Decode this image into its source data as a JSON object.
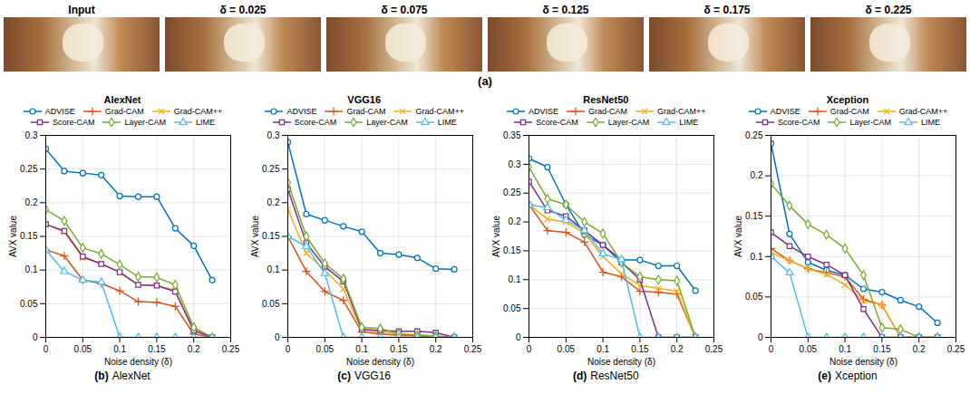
{
  "panel_a": {
    "label": "(a)",
    "images": [
      "Input",
      "δ = 0.025",
      "δ = 0.075",
      "δ = 0.125",
      "δ = 0.175",
      "δ = 0.225"
    ]
  },
  "chart_data": [
    {
      "type": "line",
      "title": "AlexNet",
      "panel_label": "(b)",
      "caption": "AlexNet",
      "xlabel": "Noise density (δ)",
      "ylabel": "AVX value",
      "x": [
        0,
        0.025,
        0.05,
        0.075,
        0.1,
        0.125,
        0.15,
        0.175,
        0.2,
        0.225
      ],
      "xlim": [
        0,
        0.25
      ],
      "xticks": [
        0,
        0.05,
        0.1,
        0.15,
        0.2,
        0.25
      ],
      "ylim": [
        0,
        0.3
      ],
      "yticks": [
        0,
        0.05,
        0.1,
        0.15,
        0.2,
        0.25,
        0.3
      ],
      "grid": true,
      "legend": "top",
      "series": [
        {
          "name": "ADVISE",
          "color": "#0072bd",
          "marker": "circle",
          "values": [
            0.28,
            0.247,
            0.244,
            0.241,
            0.21,
            0.209,
            0.209,
            0.162,
            0.136,
            0.085
          ]
        },
        {
          "name": "Grad-CAM",
          "color": "#d95319",
          "marker": "plus",
          "values": [
            0.13,
            0.121,
            0.085,
            0.08,
            0.069,
            0.053,
            0.052,
            0.046,
            0.005,
            0
          ]
        },
        {
          "name": "Grad-CAM++",
          "color": "#edb120",
          "marker": "x",
          "values": [
            0.168,
            0.157,
            0.118,
            0.11,
            0.096,
            0.078,
            0.077,
            0.07,
            0.012,
            0
          ]
        },
        {
          "name": "Score-CAM",
          "color": "#7e2f8e",
          "marker": "square",
          "values": [
            0.168,
            0.158,
            0.12,
            0.109,
            0.097,
            0.078,
            0.077,
            0.068,
            0.01,
            0
          ]
        },
        {
          "name": "Layer-CAM",
          "color": "#77ac30",
          "marker": "diamond",
          "values": [
            0.19,
            0.173,
            0.133,
            0.124,
            0.108,
            0.09,
            0.089,
            0.078,
            0.015,
            0
          ]
        },
        {
          "name": "LIME",
          "color": "#4dbeee",
          "marker": "triangle",
          "values": [
            0.13,
            0.098,
            0.085,
            0.082,
            0,
            0,
            0,
            0,
            0,
            0
          ]
        }
      ]
    },
    {
      "type": "line",
      "title": "VGG16",
      "panel_label": "(c)",
      "caption": "VGG16",
      "xlabel": "Noise density (δ)",
      "ylabel": "AVX value",
      "x": [
        0,
        0.025,
        0.05,
        0.075,
        0.1,
        0.125,
        0.15,
        0.175,
        0.2,
        0.225
      ],
      "xlim": [
        0,
        0.25
      ],
      "xticks": [
        0,
        0.05,
        0.1,
        0.15,
        0.2,
        0.25
      ],
      "ylim": [
        0,
        0.3
      ],
      "yticks": [
        0,
        0.05,
        0.1,
        0.15,
        0.2,
        0.25,
        0.3
      ],
      "grid": true,
      "legend": "top",
      "series": [
        {
          "name": "ADVISE",
          "color": "#0072bd",
          "marker": "circle",
          "values": [
            0.29,
            0.183,
            0.174,
            0.165,
            0.157,
            0.125,
            0.123,
            0.118,
            0.102,
            0.101
          ]
        },
        {
          "name": "Grad-CAM",
          "color": "#d95319",
          "marker": "plus",
          "values": [
            0.15,
            0.098,
            0.068,
            0.055,
            0.008,
            0.005,
            0.003,
            0.002,
            0.001,
            0
          ]
        },
        {
          "name": "Grad-CAM++",
          "color": "#edb120",
          "marker": "x",
          "values": [
            0.19,
            0.125,
            0.1,
            0.072,
            0.01,
            0.008,
            0.005,
            0.004,
            0.002,
            0
          ]
        },
        {
          "name": "Score-CAM",
          "color": "#7e2f8e",
          "marker": "square",
          "values": [
            0.22,
            0.14,
            0.105,
            0.083,
            0.012,
            0.01,
            0.009,
            0.009,
            0.007,
            0
          ]
        },
        {
          "name": "Layer-CAM",
          "color": "#77ac30",
          "marker": "diamond",
          "values": [
            0.23,
            0.15,
            0.11,
            0.087,
            0.015,
            0.013,
            0.005,
            0.003,
            0.002,
            0
          ]
        },
        {
          "name": "LIME",
          "color": "#4dbeee",
          "marker": "triangle",
          "values": [
            0.15,
            0.135,
            0.095,
            0,
            0,
            0,
            0,
            0,
            0,
            0
          ]
        }
      ]
    },
    {
      "type": "line",
      "title": "ResNet50",
      "panel_label": "(d)",
      "caption": "ResNet50",
      "xlabel": "Noise density (δ)",
      "ylabel": "AVX value",
      "x": [
        0,
        0.025,
        0.05,
        0.075,
        0.1,
        0.125,
        0.15,
        0.175,
        0.2,
        0.225
      ],
      "xlim": [
        0,
        0.25
      ],
      "xticks": [
        0,
        0.05,
        0.1,
        0.15,
        0.2,
        0.25
      ],
      "ylim": [
        0,
        0.35
      ],
      "yticks": [
        0,
        0.05,
        0.1,
        0.15,
        0.2,
        0.25,
        0.3,
        0.35
      ],
      "grid": true,
      "legend": "top",
      "series": [
        {
          "name": "ADVISE",
          "color": "#0072bd",
          "marker": "circle",
          "values": [
            0.31,
            0.295,
            0.23,
            0.178,
            0.16,
            0.134,
            0.134,
            0.124,
            0.124,
            0.081
          ]
        },
        {
          "name": "Grad-CAM",
          "color": "#d95319",
          "marker": "plus",
          "values": [
            0.23,
            0.185,
            0.182,
            0.165,
            0.113,
            0.105,
            0.08,
            0.078,
            0.075,
            0
          ]
        },
        {
          "name": "Grad-CAM++",
          "color": "#edb120",
          "marker": "x",
          "values": [
            0.23,
            0.205,
            0.2,
            0.18,
            0.14,
            0.11,
            0.09,
            0.085,
            0.08,
            0
          ]
        },
        {
          "name": "Score-CAM",
          "color": "#7e2f8e",
          "marker": "square",
          "values": [
            0.27,
            0.22,
            0.21,
            0.185,
            0.16,
            0.13,
            0.1,
            0,
            0,
            0
          ]
        },
        {
          "name": "Layer-CAM",
          "color": "#77ac30",
          "marker": "diamond",
          "values": [
            0.295,
            0.24,
            0.23,
            0.2,
            0.18,
            0.13,
            0.105,
            0.1,
            0.098,
            0
          ]
        },
        {
          "name": "LIME",
          "color": "#4dbeee",
          "marker": "triangle",
          "values": [
            0.23,
            0.225,
            0.203,
            0.185,
            0.145,
            0.135,
            0,
            0,
            0,
            0
          ]
        }
      ]
    },
    {
      "type": "line",
      "title": "Xception",
      "panel_label": "(e)",
      "caption": "Xception",
      "xlabel": "Noise density (δ)",
      "ylabel": "AVX value",
      "x": [
        0,
        0.025,
        0.05,
        0.075,
        0.1,
        0.125,
        0.15,
        0.175,
        0.2,
        0.225
      ],
      "xlim": [
        0,
        0.25
      ],
      "xticks": [
        0,
        0.05,
        0.1,
        0.15,
        0.2,
        0.25
      ],
      "ylim": [
        0,
        0.25
      ],
      "yticks": [
        0,
        0.05,
        0.1,
        0.15,
        0.2,
        0.25
      ],
      "grid": true,
      "legend": "top",
      "series": [
        {
          "name": "ADVISE",
          "color": "#0072bd",
          "marker": "circle",
          "values": [
            0.24,
            0.128,
            0.093,
            0.083,
            0.077,
            0.06,
            0.056,
            0.046,
            0.038,
            0.018
          ]
        },
        {
          "name": "Grad-CAM",
          "color": "#d95319",
          "marker": "plus",
          "values": [
            0.11,
            0.095,
            0.085,
            0.08,
            0.075,
            0.047,
            0.04,
            0,
            0,
            0
          ]
        },
        {
          "name": "Grad-CAM++",
          "color": "#edb120",
          "marker": "x",
          "values": [
            0.105,
            0.095,
            0.085,
            0.078,
            0.065,
            0.045,
            0.04,
            0,
            0,
            0
          ]
        },
        {
          "name": "Score-CAM",
          "color": "#7e2f8e",
          "marker": "square",
          "values": [
            0.13,
            0.113,
            0.1,
            0.09,
            0.077,
            0.035,
            0,
            0,
            0,
            0
          ]
        },
        {
          "name": "Layer-CAM",
          "color": "#77ac30",
          "marker": "diamond",
          "values": [
            0.19,
            0.163,
            0.14,
            0.127,
            0.11,
            0.077,
            0.012,
            0.01,
            0,
            0
          ]
        },
        {
          "name": "LIME",
          "color": "#4dbeee",
          "marker": "triangle",
          "values": [
            0.1,
            0.08,
            0,
            0,
            0,
            0,
            0,
            0,
            0,
            0
          ]
        }
      ]
    }
  ]
}
